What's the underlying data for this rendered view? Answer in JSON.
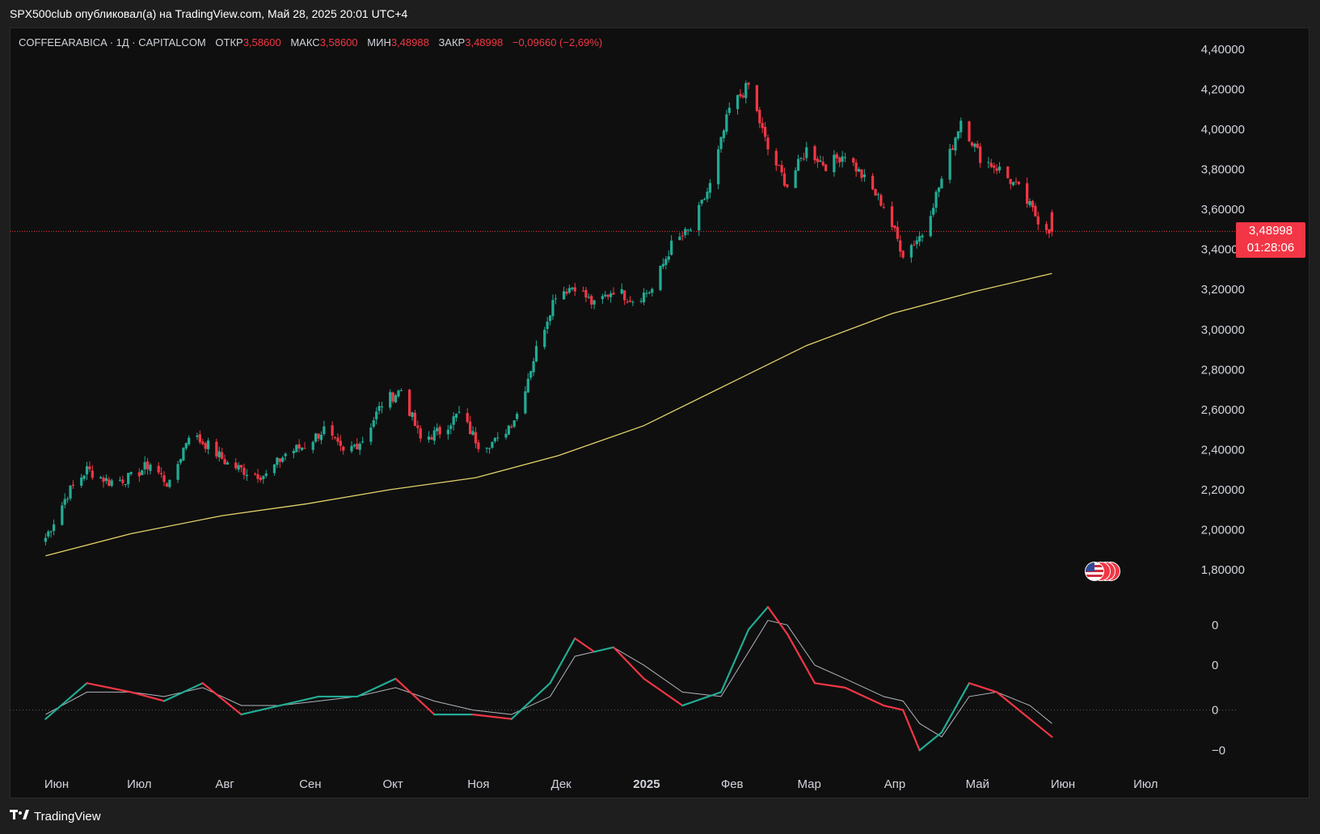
{
  "header": {
    "published_by": "SPX500club опубликовал(а) на TradingView.com, Май 28, 2025 20:01 UTC+4"
  },
  "legend": {
    "symbol": "COFFEEARABICA · 1Д · CAPITALCOM",
    "open_label": "ОТКР",
    "open_value": "3,58600",
    "high_label": "МАКС",
    "high_value": "3,58600",
    "low_label": "МИН",
    "low_value": "3,48988",
    "close_label": "ЗАКР",
    "close_value": "3,48998",
    "change": "−0,09660 (−2,69%)"
  },
  "price_badge": {
    "price": "3,48998",
    "countdown": "01:28:06"
  },
  "footer": {
    "brand": "TradingView"
  },
  "colors": {
    "up": "#22ab94",
    "down": "#f23645",
    "ma": "#e4d26a",
    "background": "#0f0f0f",
    "signal": "#b2b5be",
    "price_line": "#f23645"
  },
  "chart_data": [
    {
      "type": "candlestick",
      "title": "",
      "y_ticks": [
        "4,40000",
        "4,20000",
        "4,00000",
        "3,80000",
        "3,60000",
        "3,40000",
        "3,20000",
        "3,00000",
        "2,80000",
        "2,60000",
        "2,40000",
        "2,20000",
        "2,00000",
        "1,80000"
      ],
      "y_tick_values": [
        4.4,
        4.2,
        4.0,
        3.8,
        3.6,
        3.4,
        3.2,
        3.0,
        2.8,
        2.6,
        2.4,
        2.2,
        2.0,
        1.8
      ],
      "ylim": [
        1.75,
        4.47
      ],
      "x_ticks": [
        "Июн",
        "Июл",
        "Авг",
        "Сен",
        "Окт",
        "Ноя",
        "Дек",
        "2025",
        "Фев",
        "Мар",
        "Апр",
        "Май",
        "Июн",
        "Июл"
      ],
      "last_price": 3.48998,
      "close_series": {
        "start_date": "2024-05-28",
        "points": [
          [
            "2024-05-28",
            1.96
          ],
          [
            "2024-06-05",
            2.18
          ],
          [
            "2024-06-12",
            2.3
          ],
          [
            "2024-06-20",
            2.24
          ],
          [
            "2024-06-28",
            2.26
          ],
          [
            "2024-07-05",
            2.33
          ],
          [
            "2024-07-12",
            2.22
          ],
          [
            "2024-07-19",
            2.48
          ],
          [
            "2024-07-26",
            2.42
          ],
          [
            "2024-08-02",
            2.33
          ],
          [
            "2024-08-09",
            2.29
          ],
          [
            "2024-08-16",
            2.27
          ],
          [
            "2024-08-23",
            2.38
          ],
          [
            "2024-08-30",
            2.42
          ],
          [
            "2024-09-06",
            2.5
          ],
          [
            "2024-09-13",
            2.38
          ],
          [
            "2024-09-20",
            2.45
          ],
          [
            "2024-09-27",
            2.63
          ],
          [
            "2024-10-04",
            2.7
          ],
          [
            "2024-10-11",
            2.45
          ],
          [
            "2024-10-18",
            2.49
          ],
          [
            "2024-10-25",
            2.58
          ],
          [
            "2024-11-01",
            2.43
          ],
          [
            "2024-11-08",
            2.44
          ],
          [
            "2024-11-15",
            2.58
          ],
          [
            "2024-11-22",
            2.9
          ],
          [
            "2024-11-29",
            3.18
          ],
          [
            "2024-12-06",
            3.22
          ],
          [
            "2024-12-13",
            3.12
          ],
          [
            "2024-12-20",
            3.2
          ],
          [
            "2024-12-27",
            3.15
          ],
          [
            "2025-01-03",
            3.2
          ],
          [
            "2025-01-10",
            3.42
          ],
          [
            "2025-01-17",
            3.5
          ],
          [
            "2025-01-24",
            3.72
          ],
          [
            "2025-01-31",
            4.1
          ],
          [
            "2025-02-07",
            4.22
          ],
          [
            "2025-02-14",
            3.9
          ],
          [
            "2025-02-21",
            3.72
          ],
          [
            "2025-02-28",
            3.9
          ],
          [
            "2025-03-07",
            3.82
          ],
          [
            "2025-03-14",
            3.88
          ],
          [
            "2025-03-21",
            3.75
          ],
          [
            "2025-03-28",
            3.62
          ],
          [
            "2025-04-04",
            3.38
          ],
          [
            "2025-04-11",
            3.48
          ],
          [
            "2025-04-18",
            3.75
          ],
          [
            "2025-04-25",
            4.05
          ],
          [
            "2025-05-02",
            3.86
          ],
          [
            "2025-05-09",
            3.8
          ],
          [
            "2025-05-16",
            3.7
          ],
          [
            "2025-05-23",
            3.55
          ],
          [
            "2025-05-28",
            3.49
          ]
        ]
      },
      "moving_average": {
        "points": [
          [
            "2024-05-28",
            1.87
          ],
          [
            "2024-06-28",
            1.98
          ],
          [
            "2024-07-31",
            2.07
          ],
          [
            "2024-08-31",
            2.13
          ],
          [
            "2024-09-30",
            2.2
          ],
          [
            "2024-10-31",
            2.26
          ],
          [
            "2024-11-30",
            2.37
          ],
          [
            "2024-12-31",
            2.52
          ],
          [
            "2025-01-31",
            2.73
          ],
          [
            "2025-02-28",
            2.92
          ],
          [
            "2025-03-31",
            3.08
          ],
          [
            "2025-04-30",
            3.19
          ],
          [
            "2025-05-28",
            3.28
          ]
        ]
      }
    },
    {
      "type": "line",
      "title": "",
      "y_ticks": [
        "0",
        "0",
        "0",
        "−0"
      ],
      "series": [
        {
          "role": "main",
          "points": [
            [
              "2024-05-28",
              -0.02
            ],
            [
              "2024-06-12",
              0.06
            ],
            [
              "2024-06-28",
              0.04
            ],
            [
              "2024-07-10",
              0.02
            ],
            [
              "2024-07-24",
              0.06
            ],
            [
              "2024-08-07",
              -0.01
            ],
            [
              "2024-08-21",
              0.01
            ],
            [
              "2024-09-04",
              0.03
            ],
            [
              "2024-09-18",
              0.03
            ],
            [
              "2024-10-02",
              0.07
            ],
            [
              "2024-10-16",
              -0.01
            ],
            [
              "2024-10-30",
              -0.01
            ],
            [
              "2024-11-13",
              -0.02
            ],
            [
              "2024-11-27",
              0.06
            ],
            [
              "2024-12-06",
              0.16
            ],
            [
              "2024-12-13",
              0.13
            ],
            [
              "2024-12-20",
              0.14
            ],
            [
              "2024-12-31",
              0.07
            ],
            [
              "2025-01-14",
              0.01
            ],
            [
              "2025-01-28",
              0.04
            ],
            [
              "2025-02-07",
              0.18
            ],
            [
              "2025-02-14",
              0.23
            ],
            [
              "2025-02-21",
              0.17
            ],
            [
              "2025-03-03",
              0.06
            ],
            [
              "2025-03-14",
              0.05
            ],
            [
              "2025-03-28",
              0.01
            ],
            [
              "2025-04-04",
              0.0
            ],
            [
              "2025-04-10",
              -0.09
            ],
            [
              "2025-04-18",
              -0.05
            ],
            [
              "2025-04-28",
              0.06
            ],
            [
              "2025-05-08",
              0.04
            ],
            [
              "2025-05-20",
              -0.02
            ],
            [
              "2025-05-28",
              -0.06
            ]
          ]
        },
        {
          "role": "signal",
          "points": [
            [
              "2024-05-28",
              -0.01
            ],
            [
              "2024-06-12",
              0.04
            ],
            [
              "2024-06-28",
              0.04
            ],
            [
              "2024-07-10",
              0.03
            ],
            [
              "2024-07-24",
              0.05
            ],
            [
              "2024-08-07",
              0.01
            ],
            [
              "2024-08-21",
              0.01
            ],
            [
              "2024-09-04",
              0.02
            ],
            [
              "2024-09-18",
              0.03
            ],
            [
              "2024-10-02",
              0.05
            ],
            [
              "2024-10-16",
              0.02
            ],
            [
              "2024-10-30",
              0.0
            ],
            [
              "2024-11-13",
              -0.01
            ],
            [
              "2024-11-27",
              0.03
            ],
            [
              "2024-12-06",
              0.12
            ],
            [
              "2024-12-13",
              0.13
            ],
            [
              "2024-12-20",
              0.14
            ],
            [
              "2024-12-31",
              0.1
            ],
            [
              "2025-01-14",
              0.04
            ],
            [
              "2025-01-28",
              0.03
            ],
            [
              "2025-02-07",
              0.13
            ],
            [
              "2025-02-14",
              0.2
            ],
            [
              "2025-02-21",
              0.19
            ],
            [
              "2025-03-03",
              0.1
            ],
            [
              "2025-03-14",
              0.07
            ],
            [
              "2025-03-28",
              0.03
            ],
            [
              "2025-04-04",
              0.02
            ],
            [
              "2025-04-10",
              -0.03
            ],
            [
              "2025-04-18",
              -0.06
            ],
            [
              "2025-04-28",
              0.03
            ],
            [
              "2025-05-08",
              0.04
            ],
            [
              "2025-05-20",
              0.01
            ],
            [
              "2025-05-28",
              -0.03
            ]
          ]
        }
      ]
    }
  ]
}
